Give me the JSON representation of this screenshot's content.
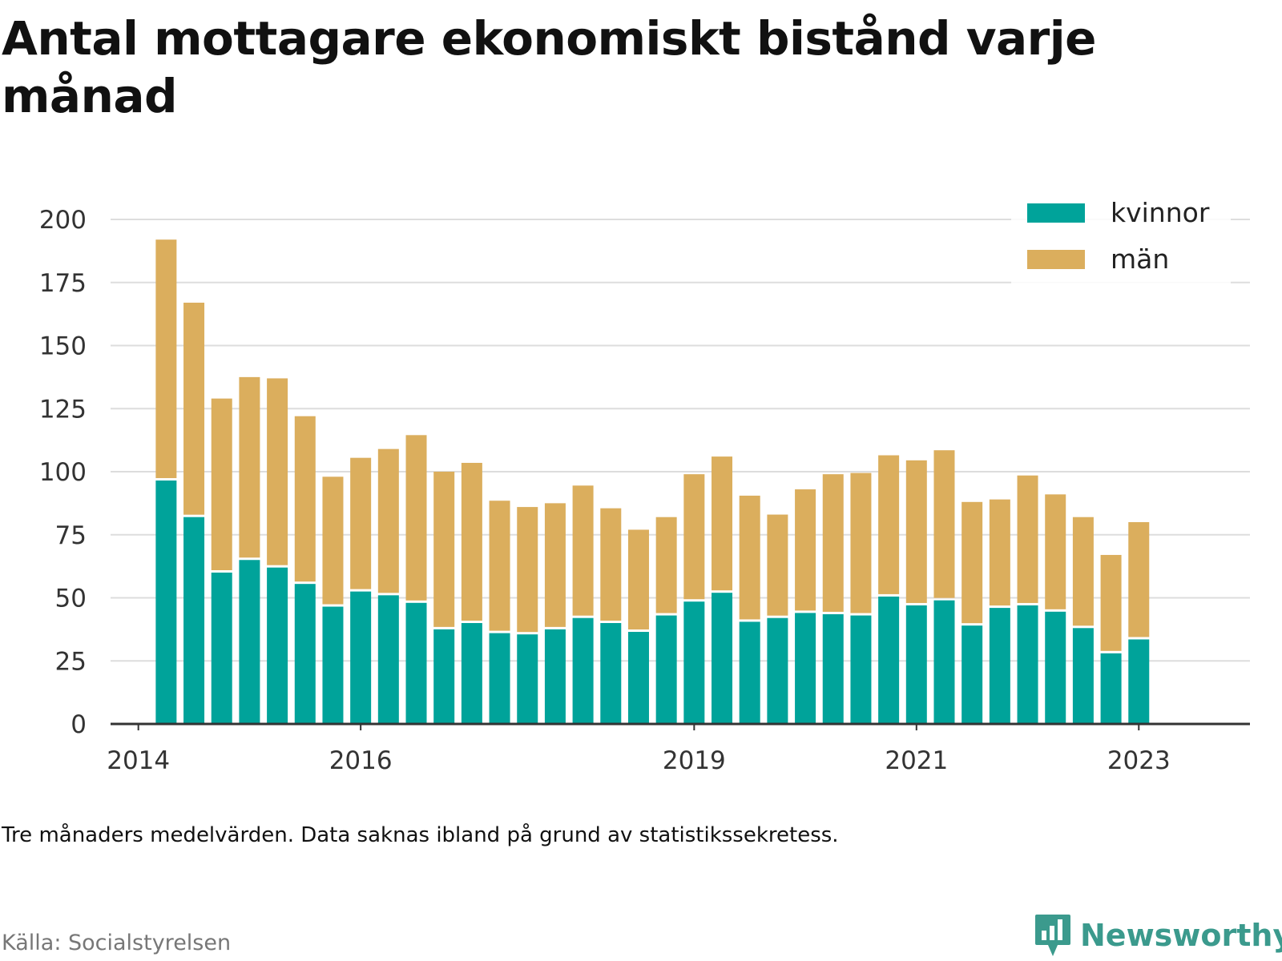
{
  "title": "Antal mottagare ekonomiskt bistånd varje månad",
  "note": "Tre månaders medelvärden. Data saknas ibland på grund av statistikssekretess.",
  "source": "Källa: Socialstyrelsen",
  "brand": "Newsworthy",
  "colors": {
    "kvinnor": "#00a39a",
    "man": "#dbae5d",
    "grid": "#dddddd",
    "axis": "#333333",
    "brand": "#3b9a8d"
  },
  "chart_data": {
    "type": "bar",
    "stacked": true,
    "ylim": [
      0,
      200
    ],
    "yticks": [
      0,
      25,
      50,
      75,
      100,
      125,
      150,
      175,
      200
    ],
    "xlim": [
      2013.75,
      2024.0
    ],
    "xticks": [
      "2014",
      "2016",
      "2019",
      "2021",
      "2023"
    ],
    "grid": true,
    "legend_position": "top-right",
    "x": [
      2014.25,
      2014.5,
      2014.75,
      2015.0,
      2015.25,
      2015.5,
      2015.75,
      2016.0,
      2016.25,
      2016.5,
      2016.75,
      2017.0,
      2017.25,
      2017.5,
      2017.75,
      2018.0,
      2018.25,
      2018.5,
      2018.75,
      2019.0,
      2019.25,
      2019.5,
      2019.75,
      2020.0,
      2020.25,
      2020.5,
      2020.75,
      2021.0,
      2021.25,
      2021.5,
      2021.75,
      2022.0,
      2022.25,
      2022.5,
      2022.75,
      2023.0
    ],
    "series": [
      {
        "name": "kvinnor",
        "values": [
          96.5,
          82,
          60,
          65,
          62,
          55.5,
          46.5,
          52.5,
          51,
          48,
          37.5,
          40,
          36,
          35.5,
          37.5,
          42,
          40,
          36.5,
          43,
          48.5,
          52,
          40.5,
          42,
          44,
          43.5,
          43,
          50.5,
          47,
          49,
          39,
          46,
          47,
          44.5,
          38,
          28,
          33.5
        ]
      },
      {
        "name": "män",
        "values": [
          95.5,
          85,
          69,
          72.5,
          75,
          66.5,
          51.5,
          53,
          58,
          66.5,
          62.5,
          63.5,
          52.5,
          50.5,
          50,
          52.5,
          45.5,
          40.5,
          39,
          50.5,
          54,
          50,
          41,
          49,
          55.5,
          56.5,
          56,
          57.5,
          59.5,
          49,
          43,
          51.5,
          46.5,
          44,
          39,
          46.5
        ]
      }
    ]
  }
}
